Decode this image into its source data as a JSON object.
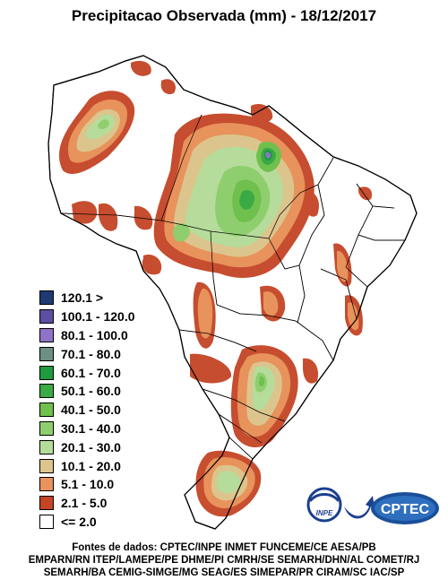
{
  "title": "Precipitacao Observada (mm) - 18/12/2017",
  "legend": {
    "items": [
      {
        "label": "120.1 >",
        "color": "#1f3a73"
      },
      {
        "label": "100.1 - 120.0",
        "color": "#5a4fa0"
      },
      {
        "label": "80.1 - 100.0",
        "color": "#8f73c9"
      },
      {
        "label": "70.1 - 80.0",
        "color": "#6d8f84"
      },
      {
        "label": "60.1 - 70.0",
        "color": "#1f9a3e"
      },
      {
        "label": "50.1 - 60.0",
        "color": "#3aaa45"
      },
      {
        "label": "40.1 - 50.0",
        "color": "#6fc04d"
      },
      {
        "label": "30.1 - 40.0",
        "color": "#8fce6e"
      },
      {
        "label": "20.1 - 30.0",
        "color": "#b5dc9a"
      },
      {
        "label": "10.1 - 20.0",
        "color": "#dcc58d"
      },
      {
        "label": "5.1 - 10.0",
        "color": "#e8925c"
      },
      {
        "label": "2.1 - 5.0",
        "color": "#c44424"
      },
      {
        "label": "<= 2.0",
        "color": "#ffffff"
      }
    ]
  },
  "logos": {
    "inpe": "INPE",
    "cptec": "CPTEC"
  },
  "sources": {
    "line1": "Fontes de dados: CPTEC/INPE INMET FUNCEME/CE AESA/PB",
    "line2": "EMPARN/RN ITEP/LAMEPE/PE DHME/PI CMRH/SE SEMARH/DHN/AL COMET/RJ",
    "line3": "SEMARH/BA CEMIG-SIMGE/MG SEAG/ES SIMEPAR/PR CIRAM/SC IAC/SP"
  }
}
